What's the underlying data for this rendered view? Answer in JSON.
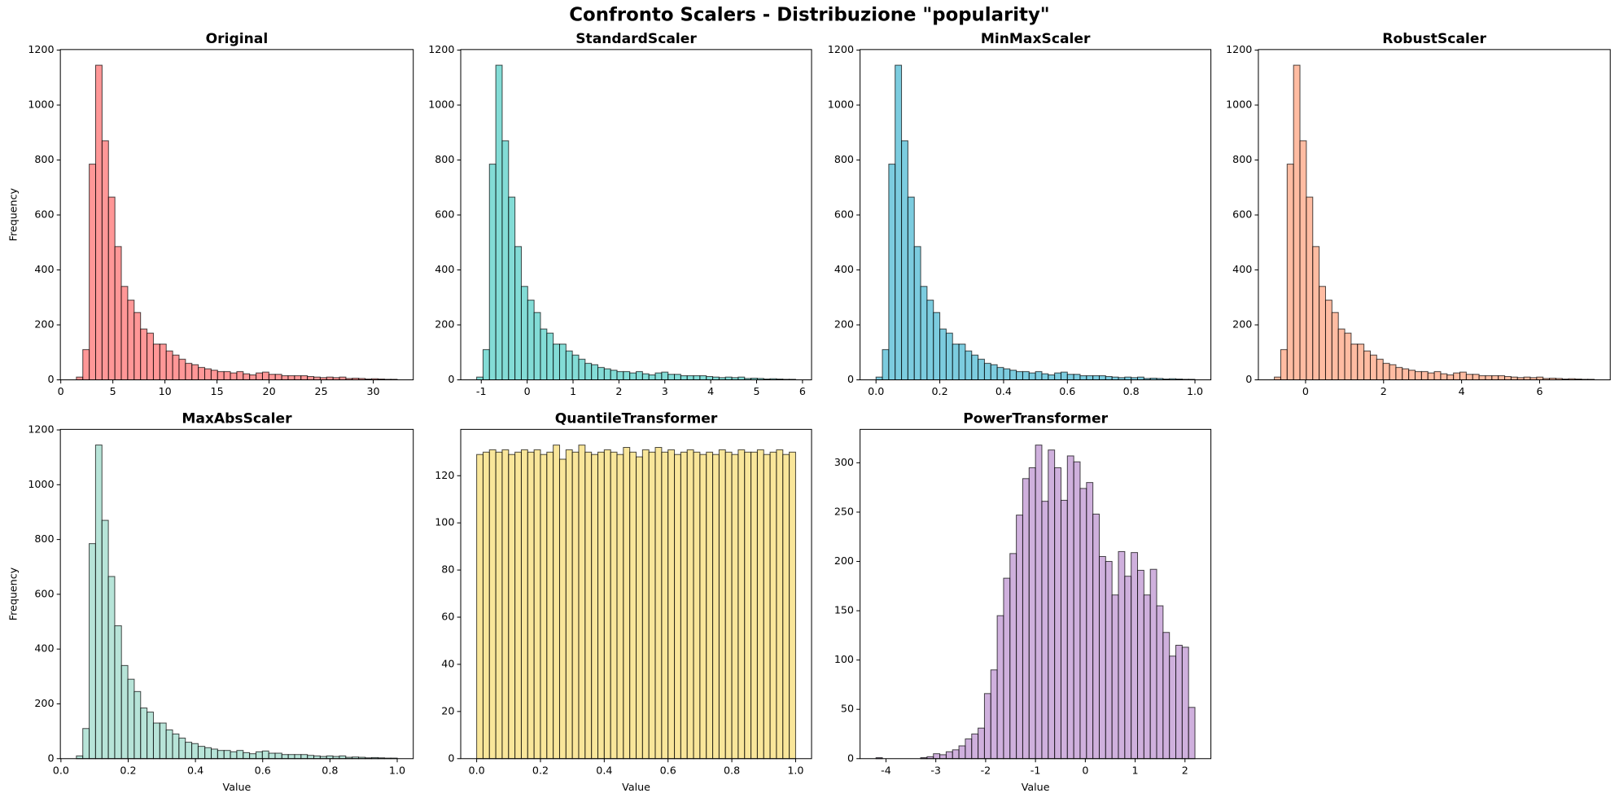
{
  "title": "Confronto Scalers - Distribuzione \"popularity\"",
  "chart_data": [
    {
      "type": "histogram",
      "title": "Original",
      "ylabel": "Frequency",
      "color": "#ff6b6b",
      "bins": [
        1.5,
        2.116,
        2.732,
        3.348,
        3.964,
        4.58,
        5.196,
        5.812,
        6.428,
        7.044,
        7.66,
        8.276,
        8.892,
        9.508,
        10.124,
        10.74,
        11.356,
        11.972,
        12.588,
        13.204,
        13.82,
        14.436,
        15.052,
        15.668,
        16.284,
        16.9,
        17.516,
        18.132,
        18.748,
        19.364,
        19.98,
        20.596,
        21.212,
        21.828,
        22.444,
        23.06,
        23.676,
        24.292,
        24.908,
        25.524,
        26.14,
        26.756,
        27.372,
        27.988,
        28.604,
        29.22,
        29.836,
        30.452,
        31.068,
        31.684,
        32.3
      ],
      "values": [
        10,
        110,
        785,
        1145,
        870,
        665,
        485,
        340,
        290,
        245,
        185,
        170,
        130,
        130,
        105,
        90,
        75,
        60,
        55,
        45,
        40,
        35,
        30,
        30,
        25,
        30,
        22,
        18,
        25,
        28,
        20,
        20,
        15,
        15,
        15,
        15,
        12,
        10,
        8,
        10,
        8,
        10,
        5,
        6,
        5,
        3,
        4,
        3,
        2,
        2
      ],
      "xlim": [
        -0.04,
        33.84
      ],
      "xticks": [
        0,
        5,
        10,
        15,
        20,
        25,
        30
      ],
      "ylim": [
        0,
        1202
      ],
      "yticks": [
        0,
        200,
        400,
        600,
        800,
        1000,
        1200
      ]
    },
    {
      "type": "histogram",
      "title": "StandardScaler",
      "color": "#4ecdc4",
      "bins": [
        -1.1,
        -0.961,
        -0.822,
        -0.683,
        -0.544,
        -0.405,
        -0.266,
        -0.127,
        0.012,
        0.151,
        0.29,
        0.429,
        0.568,
        0.707,
        0.846,
        0.985,
        1.124,
        1.263,
        1.402,
        1.541,
        1.68,
        1.819,
        1.958,
        2.097,
        2.236,
        2.375,
        2.514,
        2.653,
        2.792,
        2.931,
        3.07,
        3.209,
        3.348,
        3.487,
        3.626,
        3.765,
        3.904,
        4.043,
        4.182,
        4.321,
        4.46,
        4.599,
        4.738,
        4.877,
        5.016,
        5.155,
        5.294,
        5.433,
        5.572,
        5.711,
        5.85
      ],
      "values": [
        10,
        110,
        785,
        1145,
        870,
        665,
        485,
        340,
        290,
        245,
        185,
        170,
        130,
        130,
        105,
        90,
        75,
        60,
        55,
        45,
        40,
        35,
        30,
        30,
        25,
        30,
        22,
        18,
        25,
        28,
        20,
        20,
        15,
        15,
        15,
        15,
        12,
        10,
        8,
        10,
        8,
        10,
        5,
        6,
        5,
        3,
        4,
        3,
        2,
        2
      ],
      "xlim": [
        -1.4475,
        6.1975
      ],
      "xticks": [
        -1,
        0,
        1,
        2,
        3,
        4,
        5,
        6
      ],
      "ylim": [
        0,
        1202
      ],
      "yticks": [
        0,
        200,
        400,
        600,
        800,
        1000,
        1200
      ]
    },
    {
      "type": "histogram",
      "title": "MinMaxScaler",
      "color": "#45b7d1",
      "bins": [
        0,
        0.02,
        0.04,
        0.06,
        0.08,
        0.1,
        0.12,
        0.14,
        0.16,
        0.18,
        0.2,
        0.22,
        0.24,
        0.26,
        0.28,
        0.3,
        0.32,
        0.34,
        0.36,
        0.38,
        0.4,
        0.42,
        0.44,
        0.46,
        0.48,
        0.5,
        0.52,
        0.54,
        0.56,
        0.58,
        0.6,
        0.62,
        0.64,
        0.66,
        0.68,
        0.7,
        0.72,
        0.74,
        0.76,
        0.78,
        0.8,
        0.82,
        0.84,
        0.86,
        0.88,
        0.9,
        0.92,
        0.94,
        0.96,
        0.98,
        1
      ],
      "values": [
        10,
        110,
        785,
        1145,
        870,
        665,
        485,
        340,
        290,
        245,
        185,
        170,
        130,
        130,
        105,
        90,
        75,
        60,
        55,
        45,
        40,
        35,
        30,
        30,
        25,
        30,
        22,
        18,
        25,
        28,
        20,
        20,
        15,
        15,
        15,
        15,
        12,
        10,
        8,
        10,
        8,
        10,
        5,
        6,
        5,
        3,
        4,
        3,
        2,
        2
      ],
      "xlim": [
        -0.05,
        1.05
      ],
      "xticks": [
        {
          "value": 0,
          "label": "0.0"
        },
        0.2,
        0.4,
        0.6,
        0.8,
        {
          "value": 1,
          "label": "1.0"
        }
      ],
      "ylim": [
        0,
        1202
      ],
      "yticks": [
        0,
        200,
        400,
        600,
        800,
        1000,
        1200
      ]
    },
    {
      "type": "histogram",
      "title": "RobustScaler",
      "color": "#ffa07a",
      "bins": [
        -0.8,
        -0.636,
        -0.472,
        -0.308,
        -0.144,
        0.02,
        0.184,
        0.348,
        0.512,
        0.676,
        0.84,
        1.004,
        1.168,
        1.332,
        1.496,
        1.66,
        1.824,
        1.988,
        2.152,
        2.316,
        2.48,
        2.644,
        2.808,
        2.972,
        3.136,
        3.3,
        3.464,
        3.628,
        3.792,
        3.956,
        4.12,
        4.284,
        4.448,
        4.612,
        4.776,
        4.94,
        5.104,
        5.268,
        5.432,
        5.596,
        5.76,
        5.924,
        6.088,
        6.252,
        6.416,
        6.58,
        6.744,
        6.908,
        7.072,
        7.236,
        7.4
      ],
      "values": [
        10,
        110,
        785,
        1145,
        870,
        665,
        485,
        340,
        290,
        245,
        185,
        170,
        130,
        130,
        105,
        90,
        75,
        60,
        55,
        45,
        40,
        35,
        30,
        30,
        25,
        30,
        22,
        18,
        25,
        28,
        20,
        20,
        15,
        15,
        15,
        15,
        12,
        10,
        8,
        10,
        8,
        10,
        5,
        6,
        5,
        3,
        4,
        3,
        2,
        2
      ],
      "xlim": [
        -1.21,
        7.81
      ],
      "xticks": [
        0,
        2,
        4,
        6
      ],
      "ylim": [
        0,
        1202
      ],
      "yticks": [
        0,
        200,
        400,
        600,
        800,
        1000,
        1200
      ]
    },
    {
      "type": "histogram",
      "title": "MaxAbsScaler",
      "xlabel": "Value",
      "ylabel": "Frequency",
      "color": "#98d8c8",
      "bins": [
        0.046,
        0.065,
        0.084,
        0.103,
        0.122,
        0.141,
        0.16,
        0.18,
        0.199,
        0.218,
        0.237,
        0.256,
        0.275,
        0.294,
        0.313,
        0.332,
        0.351,
        0.37,
        0.389,
        0.408,
        0.428,
        0.447,
        0.466,
        0.485,
        0.504,
        0.523,
        0.542,
        0.561,
        0.58,
        0.599,
        0.618,
        0.637,
        0.657,
        0.676,
        0.695,
        0.714,
        0.733,
        0.752,
        0.771,
        0.79,
        0.809,
        0.828,
        0.847,
        0.866,
        0.885,
        0.905,
        0.924,
        0.943,
        0.962,
        0.981,
        1
      ],
      "values": [
        10,
        110,
        785,
        1145,
        870,
        665,
        485,
        340,
        290,
        245,
        185,
        170,
        130,
        130,
        105,
        90,
        75,
        60,
        55,
        45,
        40,
        35,
        30,
        30,
        25,
        30,
        22,
        18,
        25,
        28,
        20,
        20,
        15,
        15,
        15,
        15,
        12,
        10,
        8,
        10,
        8,
        10,
        5,
        6,
        5,
        3,
        4,
        3,
        2,
        2
      ],
      "xlim": [
        -0.0017,
        1.0477
      ],
      "xticks": [
        {
          "value": 0,
          "label": "0.0"
        },
        0.2,
        0.4,
        0.6,
        0.8,
        {
          "value": 1,
          "label": "1.0"
        }
      ],
      "ylim": [
        0,
        1202
      ],
      "yticks": [
        0,
        200,
        400,
        600,
        800,
        1000,
        1200
      ]
    },
    {
      "type": "histogram",
      "title": "QuantileTransformer",
      "xlabel": "Value",
      "color": "#f7dc6f",
      "bins": [
        0,
        0.02,
        0.04,
        0.06,
        0.08,
        0.1,
        0.12,
        0.14,
        0.16,
        0.18,
        0.2,
        0.22,
        0.24,
        0.26,
        0.28,
        0.3,
        0.32,
        0.34,
        0.36,
        0.38,
        0.4,
        0.42,
        0.44,
        0.46,
        0.48,
        0.5,
        0.52,
        0.54,
        0.56,
        0.58,
        0.6,
        0.62,
        0.64,
        0.66,
        0.68,
        0.7,
        0.72,
        0.74,
        0.76,
        0.78,
        0.8,
        0.82,
        0.84,
        0.86,
        0.88,
        0.9,
        0.92,
        0.94,
        0.96,
        0.98,
        1
      ],
      "values": [
        129,
        130,
        131,
        130,
        131,
        129,
        130,
        131,
        130,
        131,
        129,
        130,
        133,
        127,
        131,
        130,
        133,
        130,
        129,
        130,
        131,
        130,
        129,
        132,
        130,
        128,
        131,
        130,
        132,
        130,
        131,
        129,
        130,
        131,
        130,
        129,
        130,
        129,
        131,
        130,
        129,
        131,
        130,
        130,
        131,
        129,
        130,
        131,
        129,
        130
      ],
      "xlim": [
        -0.05,
        1.05
      ],
      "xticks": [
        {
          "value": 0,
          "label": "0.0"
        },
        0.2,
        0.4,
        0.6,
        0.8,
        {
          "value": 1,
          "label": "1.0"
        }
      ],
      "ylim": [
        0,
        139.65
      ],
      "yticks": [
        0,
        20,
        40,
        60,
        80,
        100,
        120
      ]
    },
    {
      "type": "histogram",
      "title": "PowerTransformer",
      "xlabel": "Value",
      "color": "#bb8fce",
      "bins": [
        -4.2,
        -4.072,
        -3.944,
        -3.816,
        -3.688,
        -3.56,
        -3.432,
        -3.304,
        -3.176,
        -3.048,
        -2.92,
        -2.792,
        -2.664,
        -2.536,
        -2.408,
        -2.28,
        -2.152,
        -2.024,
        -1.896,
        -1.768,
        -1.64,
        -1.512,
        -1.384,
        -1.256,
        -1.128,
        -1,
        -0.872,
        -0.744,
        -0.616,
        -0.488,
        -0.36,
        -0.232,
        -0.104,
        0.024,
        0.152,
        0.28,
        0.408,
        0.536,
        0.664,
        0.792,
        0.92,
        1.048,
        1.176,
        1.304,
        1.432,
        1.56,
        1.688,
        1.816,
        1.944,
        2.072,
        2.2
      ],
      "values": [
        1,
        0,
        0,
        0,
        0,
        0,
        0,
        1,
        2,
        5,
        4,
        7,
        9,
        13,
        20,
        25,
        31,
        66,
        90,
        145,
        183,
        208,
        247,
        284,
        295,
        318,
        261,
        313,
        295,
        262,
        307,
        301,
        274,
        280,
        248,
        205,
        200,
        166,
        210,
        185,
        209,
        191,
        166,
        192,
        155,
        128,
        104,
        115,
        113,
        52
      ],
      "xlim": [
        -4.52,
        2.52
      ],
      "xticks": [
        -4,
        -3,
        -2,
        -1,
        0,
        1,
        2
      ],
      "ylim": [
        0,
        333.9
      ],
      "yticks": [
        0,
        50,
        100,
        150,
        200,
        250,
        300
      ]
    }
  ]
}
